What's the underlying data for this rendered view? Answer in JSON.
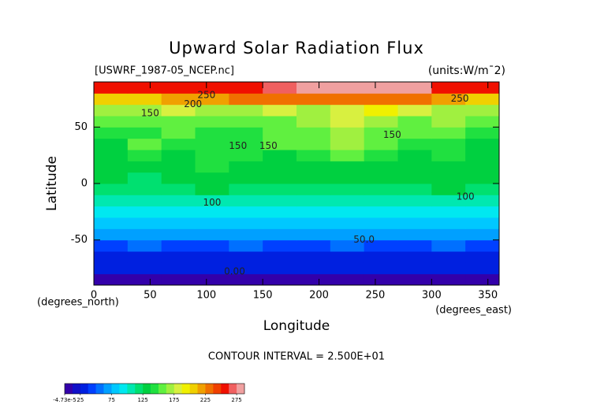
{
  "chart_data": {
    "type": "heatmap",
    "title": "Upward Solar Radiation Flux",
    "file_label": "[USWRF_1987-05_NCEP.nc]",
    "units_label": "(units:W/m¯2)",
    "x_label": "Longitude",
    "y_label": "Latitude",
    "x_unit_label": "(degrees_east)",
    "y_unit_label": "(degrees_north)",
    "footer": "CONTOUR INTERVAL = 2.500E+01",
    "xlim": [
      0,
      360
    ],
    "xticks": [
      0,
      50,
      100,
      150,
      200,
      250,
      300,
      350
    ],
    "ylim": [
      -90,
      90
    ],
    "yticks": [
      -50,
      0,
      50
    ],
    "x": [
      0,
      30,
      60,
      90,
      120,
      150,
      180,
      210,
      240,
      270,
      300,
      330,
      360
    ],
    "y": [
      -90,
      -80,
      -70,
      -60,
      -50,
      -40,
      -30,
      -20,
      -10,
      0,
      10,
      20,
      30,
      40,
      50,
      60,
      70,
      80,
      90
    ],
    "z": [
      [
        0,
        0,
        0,
        0,
        0,
        0,
        0,
        0,
        0,
        0,
        0,
        0
      ],
      [
        25,
        25,
        25,
        25,
        25,
        25,
        25,
        25,
        25,
        25,
        25,
        25
      ],
      [
        25,
        25,
        25,
        25,
        25,
        25,
        25,
        25,
        25,
        25,
        25,
        25
      ],
      [
        45,
        50,
        45,
        45,
        50,
        45,
        45,
        50,
        45,
        45,
        50,
        45
      ],
      [
        70,
        70,
        70,
        70,
        70,
        70,
        70,
        70,
        70,
        70,
        70,
        70
      ],
      [
        75,
        75,
        75,
        80,
        75,
        75,
        75,
        75,
        80,
        75,
        75,
        75
      ],
      [
        90,
        95,
        90,
        90,
        90,
        95,
        90,
        95,
        95,
        90,
        95,
        90
      ],
      [
        105,
        100,
        105,
        110,
        105,
        100,
        105,
        105,
        100,
        110,
        105,
        105
      ],
      [
        115,
        120,
        115,
        125,
        120,
        115,
        120,
        120,
        115,
        120,
        125,
        115
      ],
      [
        125,
        120,
        130,
        125,
        130,
        125,
        130,
        125,
        130,
        125,
        125,
        125
      ],
      [
        130,
        125,
        135,
        140,
        135,
        130,
        130,
        135,
        130,
        130,
        135,
        130
      ],
      [
        130,
        140,
        125,
        145,
        140,
        135,
        140,
        150,
        140,
        135,
        140,
        130
      ],
      [
        135,
        150,
        145,
        140,
        145,
        150,
        150,
        165,
        155,
        140,
        145,
        135
      ],
      [
        140,
        145,
        150,
        145,
        140,
        150,
        150,
        170,
        160,
        150,
        150,
        140
      ],
      [
        150,
        160,
        155,
        160,
        150,
        160,
        165,
        175,
        170,
        160,
        165,
        150
      ],
      [
        165,
        165,
        175,
        165,
        170,
        175,
        170,
        180,
        190,
        175,
        170,
        170
      ],
      [
        210,
        210,
        215,
        220,
        225,
        230,
        235,
        225,
        230,
        235,
        215,
        210
      ],
      [
        255,
        255,
        260,
        260,
        260,
        270,
        275,
        275,
        280,
        275,
        260,
        255
      ]
    ],
    "annotations": [
      {
        "text": "250",
        "x": 100,
        "y": 78
      },
      {
        "text": "200",
        "x": 88,
        "y": 70
      },
      {
        "text": "150",
        "x": 50,
        "y": 62
      },
      {
        "text": "150",
        "x": 128,
        "y": 33
      },
      {
        "text": "150",
        "x": 155,
        "y": 33
      },
      {
        "text": "150",
        "x": 265,
        "y": 43
      },
      {
        "text": "250",
        "x": 325,
        "y": 75
      },
      {
        "text": "100",
        "x": 105,
        "y": -17
      },
      {
        "text": "100",
        "x": 330,
        "y": -12
      },
      {
        "text": "50.0",
        "x": 240,
        "y": -50
      },
      {
        "text": "0.00",
        "x": 125,
        "y": -78
      }
    ],
    "colorbar": {
      "lim": [
        0,
        287.5
      ],
      "step": 12.5,
      "colors": [
        "#3300aa",
        "#1010c8",
        "#0020e0",
        "#0040ff",
        "#0070ff",
        "#00a0ff",
        "#00c8ff",
        "#00e8f0",
        "#00e8b0",
        "#00e070",
        "#00d040",
        "#20e040",
        "#60f040",
        "#a0f040",
        "#d8f040",
        "#f0f000",
        "#f0d000",
        "#f0a000",
        "#f07000",
        "#f04000",
        "#f01000",
        "#f06060",
        "#f0a0a0"
      ],
      "ticks": [
        {
          "value": -4.73e-05,
          "label": "-4.73e-5"
        },
        25,
        75,
        125,
        175,
        225,
        275
      ]
    }
  }
}
